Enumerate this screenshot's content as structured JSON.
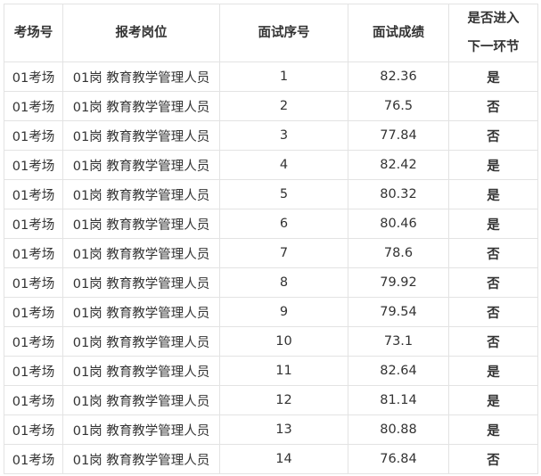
{
  "headers": [
    "考场号",
    "报考岗位",
    "面试序号",
    "面试成绩",
    "是否进入下一环节"
  ],
  "header_last_lines": [
    "是否进入",
    "下一环节"
  ],
  "rows": [
    [
      "01考场",
      "01岗 教育教学管理人员",
      "1",
      "82.36",
      "是"
    ],
    [
      "01考场",
      "01岗 教育教学管理人员",
      "2",
      "76.5",
      "否"
    ],
    [
      "01考场",
      "01岗 教育教学管理人员",
      "3",
      "77.84",
      "否"
    ],
    [
      "01考场",
      "01岗 教育教学管理人员",
      "4",
      "82.42",
      "是"
    ],
    [
      "01考场",
      "01岗 教育教学管理人员",
      "5",
      "80.32",
      "是"
    ],
    [
      "01考场",
      "01岗 教育教学管理人员",
      "6",
      "80.46",
      "是"
    ],
    [
      "01考场",
      "01岗 教育教学管理人员",
      "7",
      "78.6",
      "否"
    ],
    [
      "01考场",
      "01岗 教育教学管理人员",
      "8",
      "79.92",
      "否"
    ],
    [
      "01考场",
      "01岗 教育教学管理人员",
      "9",
      "79.54",
      "否"
    ],
    [
      "01考场",
      "01岗 教育教学管理人员",
      "10",
      "73.1",
      "否"
    ],
    [
      "01考场",
      "01岗 教育教学管理人员",
      "11",
      "82.64",
      "是"
    ],
    [
      "01考场",
      "01岗 教育教学管理人员",
      "12",
      "81.14",
      "是"
    ],
    [
      "01考场",
      "01岗 教育教学管理人员",
      "13",
      "80.88",
      "是"
    ],
    [
      "01考场",
      "01岗 教育教学管理人员",
      "14",
      "76.84",
      "否"
    ]
  ]
}
